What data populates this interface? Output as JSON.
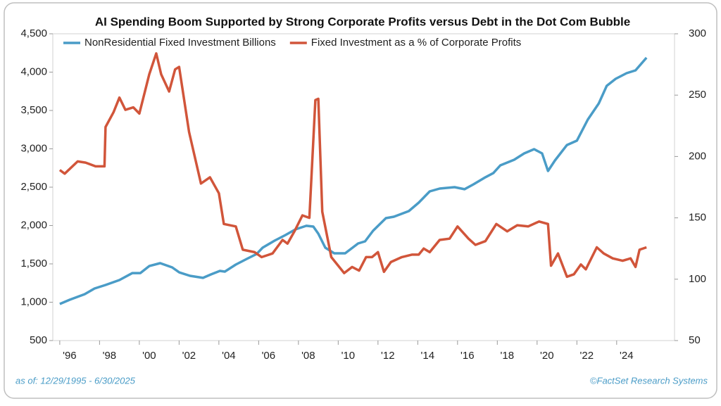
{
  "chart_data": {
    "type": "line",
    "title": "AI Spending Boom Supported by Strong Corporate Profits versus Debt in the Dot Com Bubble",
    "footnote": "as of: 12/29/1995 - 6/30/2025",
    "source": "©FactSet Research Systems",
    "xlim": [
      1995.65,
      2026.91
    ],
    "xticks": [
      {
        "value": 1996,
        "label": "'96"
      },
      {
        "value": 1998,
        "label": "'98"
      },
      {
        "value": 2000,
        "label": "'00"
      },
      {
        "value": 2002,
        "label": "'02"
      },
      {
        "value": 2004,
        "label": "'04"
      },
      {
        "value": 2006,
        "label": "'06"
      },
      {
        "value": 2008,
        "label": "'08"
      },
      {
        "value": 2010,
        "label": "'10"
      },
      {
        "value": 2012,
        "label": "'12"
      },
      {
        "value": 2014,
        "label": "'14"
      },
      {
        "value": 2016,
        "label": "'16"
      },
      {
        "value": 2018,
        "label": "'18"
      },
      {
        "value": 2020,
        "label": "'20"
      },
      {
        "value": 2022,
        "label": "'22"
      },
      {
        "value": 2024,
        "label": "'24"
      }
    ],
    "ylim": [
      500,
      4500
    ],
    "yticks": [
      500,
      {
        "value": 1000,
        "label": "1,000"
      },
      {
        "value": 1500,
        "label": "1,500"
      },
      {
        "value": 2000,
        "label": "2,000"
      },
      {
        "value": 2500,
        "label": "2,500"
      },
      {
        "value": 3000,
        "label": "3,000"
      },
      {
        "value": 3500,
        "label": "3,500"
      },
      {
        "value": 4000,
        "label": "4,000"
      },
      {
        "value": 4500,
        "label": "4,500"
      }
    ],
    "y2lim": [
      50,
      300
    ],
    "y2ticks": [
      50,
      100,
      150,
      200,
      250,
      300
    ],
    "series": [
      {
        "name": "NonResidential Fixed Investment Billions",
        "color": "#4a9cc7",
        "axis": "y",
        "x": [
          1996.0,
          1996.5,
          1997.25,
          1997.75,
          1998.3,
          1999.0,
          1999.65,
          2000.05,
          2000.5,
          2001.05,
          2001.65,
          2002.0,
          2002.55,
          2003.2,
          2003.6,
          2004.05,
          2004.3,
          2004.85,
          2005.4,
          2005.9,
          2006.2,
          2006.8,
          2007.35,
          2007.85,
          2008.4,
          2008.75,
          2009.0,
          2009.35,
          2009.8,
          2010.35,
          2011.0,
          2011.35,
          2011.75,
          2012.4,
          2012.8,
          2013.55,
          2014.05,
          2014.6,
          2015.1,
          2015.85,
          2016.35,
          2016.8,
          2017.4,
          2017.8,
          2018.15,
          2018.85,
          2019.35,
          2019.85,
          2020.25,
          2020.55,
          2020.9,
          2021.5,
          2022.0,
          2022.55,
          2023.1,
          2023.5,
          2023.95,
          2024.5,
          2024.95,
          2025.5
        ],
        "values": [
          977,
          1032,
          1105,
          1179,
          1225,
          1289,
          1380,
          1380,
          1472,
          1509,
          1454,
          1390,
          1344,
          1317,
          1362,
          1408,
          1399,
          1491,
          1564,
          1629,
          1711,
          1803,
          1876,
          1950,
          1996,
          1986,
          1894,
          1711,
          1638,
          1638,
          1766,
          1794,
          1931,
          2096,
          2115,
          2188,
          2298,
          2445,
          2482,
          2500,
          2473,
          2537,
          2629,
          2684,
          2784,
          2858,
          2940,
          2995,
          2940,
          2711,
          2849,
          3050,
          3106,
          3381,
          3592,
          3821,
          3913,
          3986,
          4023,
          4188
        ]
      },
      {
        "name": "Fixed Investment as a % of Corporate Profits",
        "color": "#d1553a",
        "axis": "y2",
        "x": [
          1996.0,
          1996.25,
          1996.9,
          1997.3,
          1997.8,
          1998.25,
          1998.3,
          1998.7,
          1999.0,
          1999.3,
          1999.7,
          2000.0,
          2000.3,
          2000.5,
          2000.85,
          2001.1,
          2001.5,
          2001.8,
          2002.0,
          2002.5,
          2003.1,
          2003.55,
          2004.0,
          2004.25,
          2004.85,
          2005.2,
          2005.8,
          2006.15,
          2006.7,
          2007.2,
          2007.45,
          2007.8,
          2008.2,
          2008.55,
          2008.85,
          2009.0,
          2009.2,
          2009.65,
          2010.3,
          2010.7,
          2011.05,
          2011.4,
          2011.7,
          2012.0,
          2012.3,
          2012.65,
          2013.2,
          2013.7,
          2014.05,
          2014.3,
          2014.6,
          2015.1,
          2015.6,
          2016.0,
          2016.55,
          2016.9,
          2017.4,
          2017.95,
          2018.5,
          2019.0,
          2019.55,
          2020.1,
          2020.55,
          2020.7,
          2021.05,
          2021.5,
          2021.85,
          2022.2,
          2022.45,
          2023.0,
          2023.35,
          2023.8,
          2024.3,
          2024.7,
          2024.95,
          2025.15,
          2025.5
        ],
        "values": [
          189,
          186,
          196,
          195,
          192,
          192,
          224,
          236,
          248,
          238,
          240,
          235,
          254,
          267,
          284,
          267,
          253,
          271,
          273,
          220,
          178,
          183,
          170,
          145,
          143,
          124,
          122,
          118,
          121,
          132,
          129,
          139,
          152,
          150,
          246,
          247,
          155,
          118,
          105,
          110,
          107,
          118,
          118,
          122,
          106,
          114,
          118,
          120,
          120,
          125,
          122,
          132,
          133,
          143,
          133,
          128,
          131,
          145,
          139,
          144,
          143,
          147,
          145,
          111,
          121,
          102,
          104,
          112,
          108,
          126,
          121,
          117,
          115,
          117,
          110,
          124,
          126
        ]
      }
    ]
  }
}
